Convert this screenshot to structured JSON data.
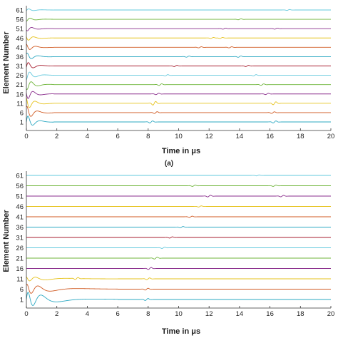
{
  "chart_data": [
    {
      "type": "line",
      "caption": "(a)",
      "xlabel": "Time in μs",
      "ylabel": "Element Number",
      "xlim": [
        0,
        20
      ],
      "x_ticks": [
        "0",
        "2",
        "4",
        "6",
        "8",
        "10",
        "12",
        "14",
        "16",
        "18",
        "20"
      ],
      "y_ticks": [
        "1",
        "6",
        "11",
        "16",
        "21",
        "26",
        "31",
        "36",
        "41",
        "46",
        "51",
        "56",
        "61"
      ],
      "series_colors": [
        "#2ba8c2",
        "#d05a22",
        "#e6c21a",
        "#8a2d8c",
        "#6fb53a",
        "#62c8dd",
        "#a71e2f"
      ],
      "wave_packets": [
        {
          "trace": 1,
          "t": 8.2,
          "amp": 0.55
        },
        {
          "trace": 1,
          "t": 16.3,
          "amp": 0.55
        },
        {
          "trace": 6,
          "t": 8.5,
          "amp": 0.5
        },
        {
          "trace": 6,
          "t": 16.2,
          "amp": 0.45
        },
        {
          "trace": 11,
          "t": 8.4,
          "amp": 1.0
        },
        {
          "trace": 11,
          "t": 16.3,
          "amp": 0.8
        },
        {
          "trace": 16,
          "t": 8.6,
          "amp": 0.4
        },
        {
          "trace": 16,
          "t": 15.8,
          "amp": 0.35
        },
        {
          "trace": 21,
          "t": 8.8,
          "amp": 0.45
        },
        {
          "trace": 21,
          "t": 15.5,
          "amp": 0.4
        },
        {
          "trace": 26,
          "t": 9.2,
          "amp": 0.35
        },
        {
          "trace": 26,
          "t": 15.0,
          "amp": 0.35
        },
        {
          "trace": 31,
          "t": 9.8,
          "amp": 0.35
        },
        {
          "trace": 31,
          "t": 14.5,
          "amp": 0.35
        },
        {
          "trace": 36,
          "t": 10.6,
          "amp": 0.3
        },
        {
          "trace": 36,
          "t": 14.0,
          "amp": 0.35
        },
        {
          "trace": 41,
          "t": 11.4,
          "amp": 0.3
        },
        {
          "trace": 41,
          "t": 13.4,
          "amp": 0.3
        },
        {
          "trace": 46,
          "t": 12.2,
          "amp": 0.3
        },
        {
          "trace": 46,
          "t": 12.8,
          "amp": 0.3
        },
        {
          "trace": 51,
          "t": 13.0,
          "amp": 0.3
        },
        {
          "trace": 51,
          "t": 16.4,
          "amp": 0.3
        },
        {
          "trace": 56,
          "t": 14.0,
          "amp": 0.25
        },
        {
          "trace": 61,
          "t": 17.2,
          "amp": 0.25
        }
      ],
      "initial_ringing": {
        "duration_us": 1.8,
        "amp": 3.2
      }
    },
    {
      "type": "line",
      "caption": "",
      "xlabel": "Time in μs",
      "ylabel": "Element Number",
      "xlim": [
        0,
        20
      ],
      "x_ticks": [
        "0",
        "2",
        "4",
        "6",
        "8",
        "10",
        "12",
        "14",
        "16",
        "18",
        "20"
      ],
      "y_ticks": [
        "1",
        "6",
        "11",
        "16",
        "21",
        "26",
        "31",
        "36",
        "41",
        "46",
        "51",
        "56",
        "61"
      ],
      "series_colors": [
        "#2ba8c2",
        "#d05a22",
        "#e6c21a",
        "#8a2d8c",
        "#6fb53a",
        "#62c8dd",
        "#a71e2f"
      ],
      "wave_packets": [
        {
          "trace": 1,
          "t": 7.9,
          "amp": 0.55
        },
        {
          "trace": 6,
          "t": 7.9,
          "amp": 0.5
        },
        {
          "trace": 11,
          "t": 3.3,
          "amp": 0.55
        },
        {
          "trace": 11,
          "t": 8.0,
          "amp": 0.5
        },
        {
          "trace": 16,
          "t": 8.1,
          "amp": 0.55
        },
        {
          "trace": 21,
          "t": 8.5,
          "amp": 0.5
        },
        {
          "trace": 26,
          "t": 9.0,
          "amp": 0.35
        },
        {
          "trace": 31,
          "t": 9.5,
          "amp": 0.35
        },
        {
          "trace": 36,
          "t": 10.2,
          "amp": 0.35
        },
        {
          "trace": 41,
          "t": 10.8,
          "amp": 0.35
        },
        {
          "trace": 46,
          "t": 11.4,
          "amp": 0.3
        },
        {
          "trace": 51,
          "t": 12.0,
          "amp": 0.45
        },
        {
          "trace": 51,
          "t": 16.8,
          "amp": 0.4
        },
        {
          "trace": 56,
          "t": 11.0,
          "amp": 0.35
        },
        {
          "trace": 56,
          "t": 16.3,
          "amp": 0.35
        },
        {
          "trace": 61,
          "t": 15.2,
          "amp": 0.25
        }
      ],
      "initial_ringing": {
        "duration_us": 6.0,
        "amp": 3.4
      }
    }
  ]
}
